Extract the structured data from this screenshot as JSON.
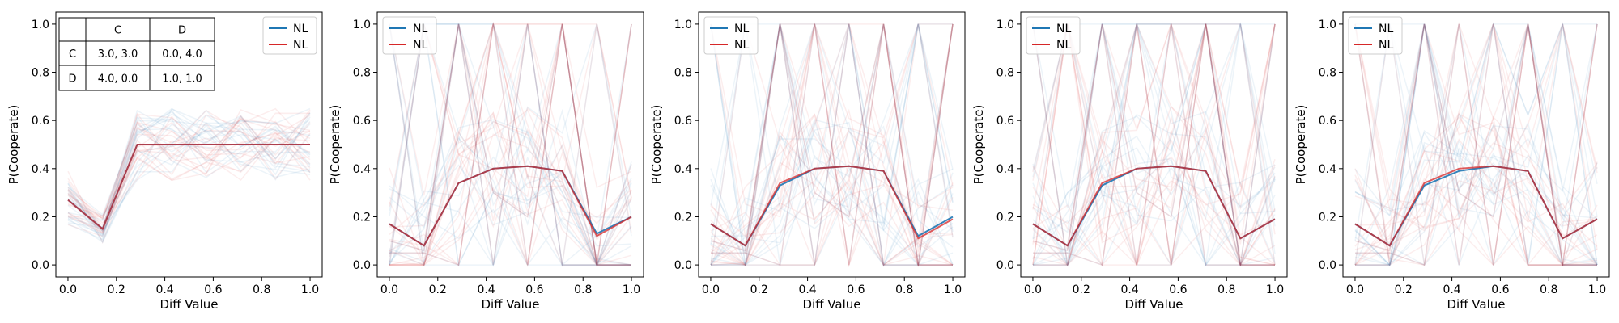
{
  "chart_data": [
    {
      "type": "line",
      "xlabel": "Diff Value",
      "ylabel": "P(Cooperate)",
      "xlim": [
        -0.05,
        1.05
      ],
      "ylim": [
        -0.05,
        1.05
      ],
      "xticks": [
        0.0,
        0.2,
        0.4,
        0.6,
        0.8,
        1.0
      ],
      "yticks": [
        0.0,
        0.2,
        0.4,
        0.6,
        0.8,
        1.0
      ],
      "xtick_labels": [
        "0.0",
        "0.2",
        "0.4",
        "0.6",
        "0.8",
        "1.0"
      ],
      "ytick_labels": [
        "0.0",
        "0.2",
        "0.4",
        "0.6",
        "0.8",
        "1.0"
      ],
      "grid": false,
      "legend_position": "top-right",
      "x": [
        0.0,
        0.143,
        0.286,
        0.429,
        0.571,
        0.714,
        0.857,
        1.0
      ],
      "series": [
        {
          "name": "NL",
          "color": "#1f77b4",
          "values": [
            0.27,
            0.15,
            0.5,
            0.5,
            0.5,
            0.5,
            0.5,
            0.5
          ]
        },
        {
          "name": "NL",
          "color": "#d62728",
          "values": [
            0.27,
            0.15,
            0.5,
            0.5,
            0.5,
            0.5,
            0.5,
            0.5
          ]
        }
      ],
      "payoff_table": {
        "col_headers": [
          "",
          "C",
          "D"
        ],
        "rows": [
          [
            "C",
            "3.0, 3.0",
            "0.0, 4.0"
          ],
          [
            "D",
            "4.0, 0.0",
            "1.0, 1.0"
          ]
        ]
      }
    },
    {
      "type": "line",
      "xlabel": "Diff Value",
      "ylabel": "P(Cooperate)",
      "xlim": [
        -0.05,
        1.05
      ],
      "ylim": [
        -0.05,
        1.05
      ],
      "xticks": [
        0.0,
        0.2,
        0.4,
        0.6,
        0.8,
        1.0
      ],
      "yticks": [
        0.0,
        0.2,
        0.4,
        0.6,
        0.8,
        1.0
      ],
      "xtick_labels": [
        "0.0",
        "0.2",
        "0.4",
        "0.6",
        "0.8",
        "1.0"
      ],
      "ytick_labels": [
        "0.0",
        "0.2",
        "0.4",
        "0.6",
        "0.8",
        "1.0"
      ],
      "grid": false,
      "legend_position": "top-left",
      "x": [
        0.0,
        0.143,
        0.286,
        0.429,
        0.571,
        0.714,
        0.857,
        1.0
      ],
      "series": [
        {
          "name": "NL",
          "color": "#1f77b4",
          "values": [
            0.17,
            0.08,
            0.34,
            0.4,
            0.41,
            0.39,
            0.13,
            0.2
          ]
        },
        {
          "name": "NL",
          "color": "#d62728",
          "values": [
            0.17,
            0.08,
            0.34,
            0.4,
            0.41,
            0.39,
            0.12,
            0.2
          ]
        }
      ]
    },
    {
      "type": "line",
      "xlabel": "Diff Value",
      "ylabel": "P(Cooperate)",
      "xlim": [
        -0.05,
        1.05
      ],
      "ylim": [
        -0.05,
        1.05
      ],
      "xticks": [
        0.0,
        0.2,
        0.4,
        0.6,
        0.8,
        1.0
      ],
      "yticks": [
        0.0,
        0.2,
        0.4,
        0.6,
        0.8,
        1.0
      ],
      "xtick_labels": [
        "0.0",
        "0.2",
        "0.4",
        "0.6",
        "0.8",
        "1.0"
      ],
      "ytick_labels": [
        "0.0",
        "0.2",
        "0.4",
        "0.6",
        "0.8",
        "1.0"
      ],
      "grid": false,
      "legend_position": "top-left",
      "x": [
        0.0,
        0.143,
        0.286,
        0.429,
        0.571,
        0.714,
        0.857,
        1.0
      ],
      "series": [
        {
          "name": "NL",
          "color": "#1f77b4",
          "values": [
            0.17,
            0.08,
            0.33,
            0.4,
            0.41,
            0.39,
            0.12,
            0.2
          ]
        },
        {
          "name": "NL",
          "color": "#d62728",
          "values": [
            0.17,
            0.08,
            0.34,
            0.4,
            0.41,
            0.39,
            0.11,
            0.19
          ]
        }
      ]
    },
    {
      "type": "line",
      "xlabel": "Diff Value",
      "ylabel": "P(Cooperate)",
      "xlim": [
        -0.05,
        1.05
      ],
      "ylim": [
        -0.05,
        1.05
      ],
      "xticks": [
        0.0,
        0.2,
        0.4,
        0.6,
        0.8,
        1.0
      ],
      "yticks": [
        0.0,
        0.2,
        0.4,
        0.6,
        0.8,
        1.0
      ],
      "xtick_labels": [
        "0.0",
        "0.2",
        "0.4",
        "0.6",
        "0.8",
        "1.0"
      ],
      "ytick_labels": [
        "0.0",
        "0.2",
        "0.4",
        "0.6",
        "0.8",
        "1.0"
      ],
      "grid": false,
      "legend_position": "top-left",
      "x": [
        0.0,
        0.143,
        0.286,
        0.429,
        0.571,
        0.714,
        0.857,
        1.0
      ],
      "series": [
        {
          "name": "NL",
          "color": "#1f77b4",
          "values": [
            0.17,
            0.08,
            0.33,
            0.4,
            0.41,
            0.39,
            0.11,
            0.19
          ]
        },
        {
          "name": "NL",
          "color": "#d62728",
          "values": [
            0.17,
            0.08,
            0.34,
            0.4,
            0.41,
            0.39,
            0.11,
            0.19
          ]
        }
      ]
    },
    {
      "type": "line",
      "xlabel": "Diff Value",
      "ylabel": "P(Cooperate)",
      "xlim": [
        -0.05,
        1.05
      ],
      "ylim": [
        -0.05,
        1.05
      ],
      "xticks": [
        0.0,
        0.2,
        0.4,
        0.6,
        0.8,
        1.0
      ],
      "yticks": [
        0.0,
        0.2,
        0.4,
        0.6,
        0.8,
        1.0
      ],
      "xtick_labels": [
        "0.0",
        "0.2",
        "0.4",
        "0.6",
        "0.8",
        "1.0"
      ],
      "ytick_labels": [
        "0.0",
        "0.2",
        "0.4",
        "0.6",
        "0.8",
        "1.0"
      ],
      "grid": false,
      "legend_position": "top-left",
      "x": [
        0.0,
        0.143,
        0.286,
        0.429,
        0.571,
        0.714,
        0.857,
        1.0
      ],
      "series": [
        {
          "name": "NL",
          "color": "#1f77b4",
          "values": [
            0.17,
            0.08,
            0.33,
            0.39,
            0.41,
            0.39,
            0.11,
            0.19
          ]
        },
        {
          "name": "NL",
          "color": "#d62728",
          "values": [
            0.17,
            0.08,
            0.34,
            0.4,
            0.41,
            0.39,
            0.11,
            0.19
          ]
        }
      ]
    }
  ]
}
